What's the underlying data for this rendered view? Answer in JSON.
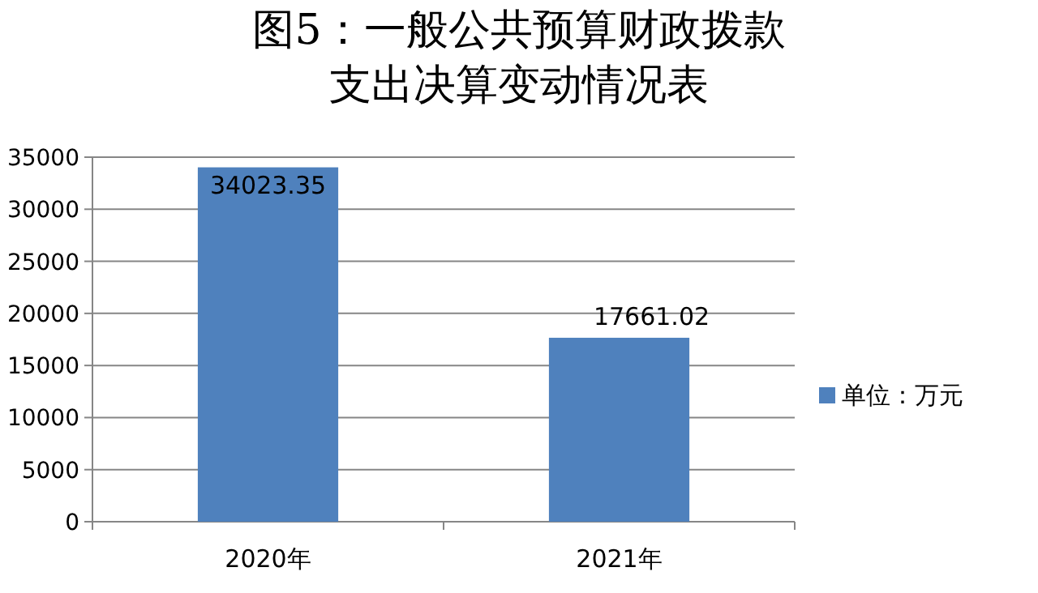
{
  "chart_data": {
    "type": "bar",
    "title": "图5：一般公共预算财政拨款支出决算变动情况表",
    "categories": [
      "2020年",
      "2021年"
    ],
    "series": [
      {
        "name": "单位：万元",
        "color": "#4f81bd",
        "values": [
          34023.35,
          17661.02
        ]
      }
    ],
    "ylim": [
      0,
      35000
    ],
    "yticks": [
      0,
      5000,
      10000,
      15000,
      20000,
      25000,
      30000,
      35000
    ],
    "grid": "y",
    "legend": "right",
    "data_labels": true
  }
}
